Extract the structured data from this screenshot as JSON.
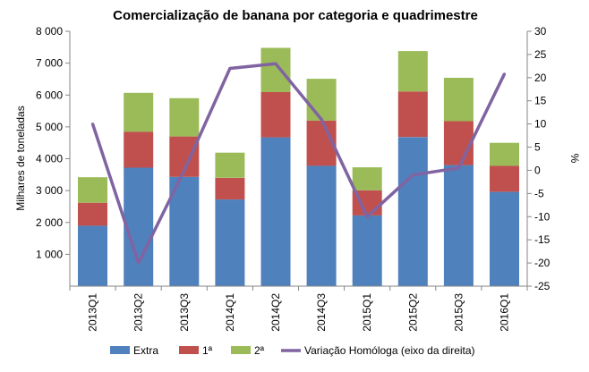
{
  "chart_data": {
    "type": "bar",
    "stacked": true,
    "title": "Comercialização de banana por categoria e quadrimestre",
    "ylabel": "Milhares de toneladas",
    "y2label": "%",
    "categories": [
      "2013Q1",
      "2013Q2",
      "2013Q3",
      "2014Q1",
      "2014Q2",
      "2014Q3",
      "2015Q1",
      "2015Q2",
      "2015Q3",
      "2016Q1"
    ],
    "ylim": [
      0,
      8000
    ],
    "y2lim": [
      -25,
      30
    ],
    "yticks": [
      "1 000",
      "2 000",
      "3 000",
      "4 000",
      "5 000",
      "6 000",
      "7 000",
      "8 000"
    ],
    "y2ticks": [
      "-25",
      "-20",
      "-15",
      "-10",
      "-5",
      "0",
      "5",
      "10",
      "15",
      "20",
      "25",
      "30"
    ],
    "grid": false,
    "legend_position": "bottom",
    "series": [
      {
        "name": "Extra",
        "color": "#4F81BD",
        "values": [
          1900,
          3720,
          3430,
          2720,
          4670,
          3780,
          2220,
          4680,
          3800,
          2960
        ]
      },
      {
        "name": "1ª",
        "color": "#C0504D",
        "values": [
          720,
          1130,
          1270,
          680,
          1420,
          1420,
          790,
          1430,
          1380,
          820
        ]
      },
      {
        "name": "2ª",
        "color": "#9BBB59",
        "values": [
          800,
          1220,
          1200,
          790,
          1390,
          1310,
          720,
          1270,
          1360,
          720
        ]
      },
      {
        "name": "Variação Homóloga (eixo da direita)",
        "color": "#8064A2",
        "type": "line",
        "axis": "right",
        "values": [
          10,
          -20,
          0,
          22,
          23,
          11,
          -10,
          -1,
          0.5,
          20.8
        ]
      }
    ]
  }
}
